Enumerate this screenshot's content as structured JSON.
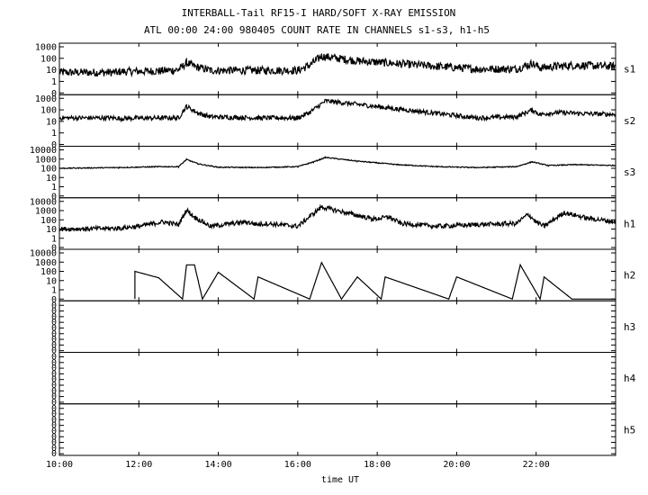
{
  "chart_data": {
    "type": "line",
    "title": "INTERBALL-Tail RF15-I HARD/SOFT X-RAY EMISSION",
    "subtitle": "ATL 00:00 24:00 980405  COUNT RATE IN CHANNELS s1-s3, h1-h5",
    "xlabel": "time UT",
    "xlim": [
      10.0,
      24.0
    ],
    "x_ticks": [
      {
        "value": 10,
        "label": "10:00"
      },
      {
        "value": 12,
        "label": "12:00"
      },
      {
        "value": 14,
        "label": "14:00"
      },
      {
        "value": 16,
        "label": "16:00"
      },
      {
        "value": 18,
        "label": "18:00"
      },
      {
        "value": 20,
        "label": "20:00"
      },
      {
        "value": 22,
        "label": "22:00"
      }
    ],
    "panels": [
      {
        "name": "s1",
        "log_min": -1,
        "log_max": 3,
        "y_ticks": [
          {
            "v": 1000,
            "label": "1000"
          },
          {
            "v": 100,
            "label": "100"
          },
          {
            "v": 10,
            "label": "10"
          },
          {
            "v": 1,
            "label": "1"
          },
          {
            "v": 0.1,
            "label": "0"
          }
        ],
        "noise": 0.35,
        "series": [
          [
            10.0,
            6
          ],
          [
            11.5,
            6
          ],
          [
            11.5,
            7
          ],
          [
            12.5,
            8
          ],
          [
            13.0,
            10
          ],
          [
            13.2,
            40
          ],
          [
            13.4,
            20
          ],
          [
            13.8,
            9
          ],
          [
            15.0,
            9
          ],
          [
            16.0,
            9
          ],
          [
            16.3,
            25
          ],
          [
            16.6,
            150
          ],
          [
            17.5,
            60
          ],
          [
            18.5,
            35
          ],
          [
            19.5,
            20
          ],
          [
            20.5,
            12
          ],
          [
            21.5,
            12
          ],
          [
            21.9,
            35
          ],
          [
            22.1,
            15
          ],
          [
            22.5,
            20
          ],
          [
            23.0,
            25
          ],
          [
            24.0,
            20
          ]
        ]
      },
      {
        "name": "s2",
        "log_min": -1,
        "log_max": 3,
        "y_ticks": [
          {
            "v": 1000,
            "label": "1000"
          },
          {
            "v": 100,
            "label": "100"
          },
          {
            "v": 10,
            "label": "10"
          },
          {
            "v": 1,
            "label": "1"
          },
          {
            "v": 0.1,
            "label": "0"
          }
        ],
        "noise": 0.2,
        "series": [
          [
            10.0,
            20
          ],
          [
            11.5,
            20
          ],
          [
            11.5,
            18
          ],
          [
            12.5,
            20
          ],
          [
            13.0,
            20
          ],
          [
            13.2,
            200
          ],
          [
            13.5,
            50
          ],
          [
            13.8,
            25
          ],
          [
            15.0,
            20
          ],
          [
            16.0,
            20
          ],
          [
            16.3,
            60
          ],
          [
            16.7,
            600
          ],
          [
            17.5,
            300
          ],
          [
            18.5,
            120
          ],
          [
            19.5,
            50
          ],
          [
            20.5,
            20
          ],
          [
            21.5,
            25
          ],
          [
            21.9,
            100
          ],
          [
            22.1,
            40
          ],
          [
            22.5,
            60
          ],
          [
            23.0,
            50
          ],
          [
            24.0,
            40
          ]
        ]
      },
      {
        "name": "s3",
        "log_min": -1,
        "log_max": 4,
        "y_ticks": [
          {
            "v": 10000,
            "label": "10000"
          },
          {
            "v": 1000,
            "label": "1000"
          },
          {
            "v": 100,
            "label": "100"
          },
          {
            "v": 10,
            "label": "10"
          },
          {
            "v": 1,
            "label": "1"
          },
          {
            "v": 0.1,
            "label": "0"
          }
        ],
        "noise": 0.05,
        "series": [
          [
            10.0,
            100
          ],
          [
            11.5,
            120
          ],
          [
            12.5,
            150
          ],
          [
            13.0,
            150
          ],
          [
            13.2,
            900
          ],
          [
            13.5,
            300
          ],
          [
            14.0,
            130
          ],
          [
            15.0,
            120
          ],
          [
            16.0,
            150
          ],
          [
            16.4,
            500
          ],
          [
            16.7,
            1500
          ],
          [
            17.5,
            600
          ],
          [
            18.5,
            250
          ],
          [
            19.5,
            150
          ],
          [
            20.5,
            120
          ],
          [
            21.5,
            150
          ],
          [
            21.9,
            500
          ],
          [
            22.3,
            200
          ],
          [
            23.0,
            250
          ],
          [
            24.0,
            200
          ]
        ]
      },
      {
        "name": "h1",
        "log_min": -1,
        "log_max": 4,
        "y_ticks": [
          {
            "v": 10000,
            "label": "10000"
          },
          {
            "v": 1000,
            "label": "1000"
          },
          {
            "v": 100,
            "label": "100"
          },
          {
            "v": 10,
            "label": "10"
          },
          {
            "v": 1,
            "label": "1"
          },
          {
            "v": 0.1,
            "label": "0"
          }
        ],
        "noise": 0.25,
        "series": [
          [
            10.0,
            10
          ],
          [
            11.5,
            12
          ],
          [
            12.0,
            20
          ],
          [
            12.6,
            60
          ],
          [
            13.0,
            30
          ],
          [
            13.2,
            1200
          ],
          [
            13.4,
            200
          ],
          [
            13.8,
            20
          ],
          [
            14.7,
            60
          ],
          [
            15.0,
            30
          ],
          [
            15.2,
            40
          ],
          [
            16.0,
            20
          ],
          [
            16.6,
            2500
          ],
          [
            17.5,
            300
          ],
          [
            17.9,
            120
          ],
          [
            18.3,
            200
          ],
          [
            18.6,
            40
          ],
          [
            19.5,
            20
          ],
          [
            20.5,
            30
          ],
          [
            21.5,
            40
          ],
          [
            21.8,
            400
          ],
          [
            22.0,
            60
          ],
          [
            22.2,
            20
          ],
          [
            22.7,
            600
          ],
          [
            23.3,
            150
          ],
          [
            24.0,
            60
          ]
        ]
      },
      {
        "name": "h2",
        "log_min": -1,
        "log_max": 4,
        "y_ticks": [
          {
            "v": 10000,
            "label": "10000"
          },
          {
            "v": 1000,
            "label": "1000"
          },
          {
            "v": 100,
            "label": "100"
          },
          {
            "v": 10,
            "label": "10"
          },
          {
            "v": 1,
            "label": "1"
          },
          {
            "v": 0.1,
            "label": "0"
          }
        ],
        "noise": 0.0,
        "series": [
          [
            11.9,
            0.1
          ],
          [
            11.9,
            100
          ],
          [
            12.5,
            20
          ],
          [
            13.1,
            0.1
          ],
          [
            13.2,
            500
          ],
          [
            13.4,
            500
          ],
          [
            13.6,
            0.1
          ],
          [
            14.0,
            80
          ],
          [
            14.9,
            0.1
          ],
          [
            15.0,
            25
          ],
          [
            16.3,
            0.1
          ],
          [
            16.6,
            900
          ],
          [
            17.1,
            0.1
          ],
          [
            17.5,
            25
          ],
          [
            18.1,
            0.1
          ],
          [
            18.2,
            25
          ],
          [
            19.8,
            0.1
          ],
          [
            20.0,
            25
          ],
          [
            21.4,
            0.1
          ],
          [
            21.6,
            500
          ],
          [
            22.1,
            0.1
          ],
          [
            22.2,
            25
          ],
          [
            22.9,
            0.1
          ],
          [
            24.0,
            0.1
          ]
        ]
      },
      {
        "name": "h3",
        "log_min": 0,
        "log_max": 1,
        "y_ticks": [],
        "noise": 0.0,
        "series": []
      },
      {
        "name": "h4",
        "log_min": 0,
        "log_max": 1,
        "y_ticks": [],
        "noise": 0.0,
        "series": []
      },
      {
        "name": "h5",
        "log_min": 0,
        "log_max": 1,
        "y_ticks": [],
        "noise": 0.0,
        "series": []
      }
    ],
    "zero_label": "0"
  }
}
